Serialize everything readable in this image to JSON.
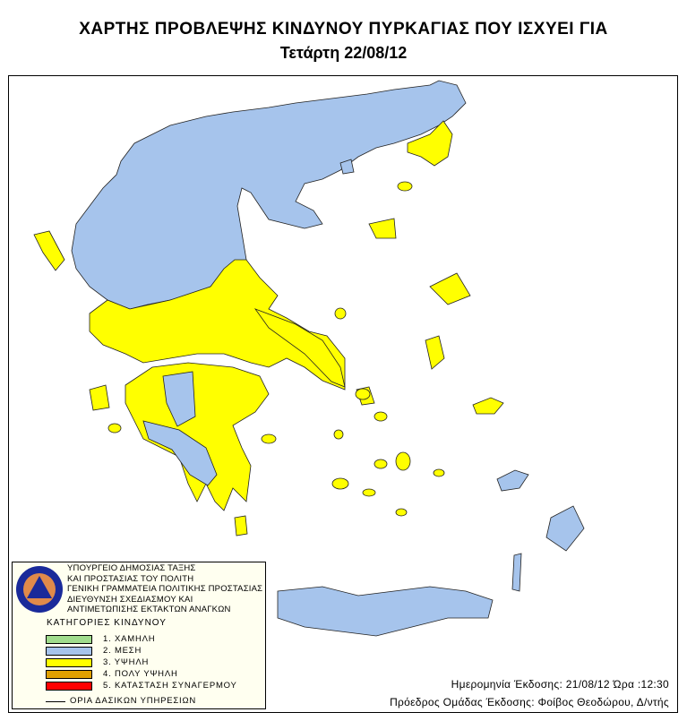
{
  "header": {
    "title": "ΧΑΡΤΗΣ ΠΡΟΒΛΕΨΗΣ ΚΙΝΔΥΝΟΥ ΠΥΡΚΑΓΙΑΣ ΠΟΥ ΙΣΧΥΕΙ ΓΙΑ",
    "date": "Τετάρτη 22/08/12"
  },
  "legend": {
    "logo_text": [
      "ΠΟΛΙΤΙΚΗ ΠΡΟΣΤΑΣΙΑ",
      "ΕΛΛΑΔΑ"
    ],
    "org_lines": [
      "ΥΠΟΥΡΓΕΙΟ ΔΗΜΟΣΙΑΣ ΤΑΞΗΣ",
      "ΚΑΙ ΠΡΟΣΤΑΣΙΑΣ ΤΟΥ ΠΟΛΙΤΗ",
      "ΓΕΝΙΚΗ ΓΡΑΜΜΑΤΕΙΑ ΠΟΛΙΤΙΚΗΣ ΠΡΟΣΤΑΣΙΑΣ",
      "ΔΙΕΥΘΥΝΣΗ ΣΧΕΔΙΑΣΜΟΥ ΚΑΙ",
      "ΑΝΤΙΜΕΤΩΠΙΣΗΣ ΕΚΤΑΚΤΩΝ ΑΝΑΓΚΩΝ"
    ],
    "categories_title": "ΚΑΤΗΓΟΡΙΕΣ ΚΙΝΔΥΝΟΥ",
    "categories": [
      {
        "label": "1. ΧΑΜΗΛΗ",
        "color": "#a0dc8c"
      },
      {
        "label": "2. ΜΕΣΗ",
        "color": "#a6c4ec"
      },
      {
        "label": "3. ΥΨΗΛΗ",
        "color": "#ffff00"
      },
      {
        "label": "4. ΠΟΛΥ ΥΨΗΛΗ",
        "color": "#e0a000"
      },
      {
        "label": "5. ΚΑΤΑΣΤΑΣΗ ΣΥΝΑΓΕΡΜΟΥ",
        "color": "#ff0000"
      }
    ],
    "boundary_label": "ΟΡΙΑ ΔΑΣΙΚΩΝ ΥΠΗΡΕΣΙΩΝ"
  },
  "footer": {
    "issue_date": "Ημερομηνία Έκδοσης: 21/08/12  Ώρα :12:30",
    "chair": "Πρόεδρος Ομάδας Έκδοσης: Φοίβος Θεοδώρου, Δ/ντής"
  }
}
